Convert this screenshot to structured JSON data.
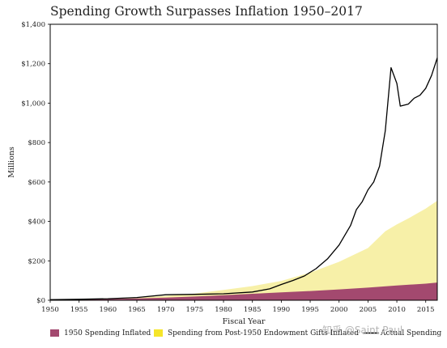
{
  "title": "Spending Growth Surpasses Inflation 1950–2017",
  "watermark": "知乎 @Saint Paul",
  "chart_data": {
    "type": "area",
    "title": "Spending Growth Surpasses Inflation 1950–2017",
    "xlabel": "Fiscal Year",
    "ylabel": "Millions",
    "xlim": [
      1950,
      2017
    ],
    "ylim": [
      0,
      1400
    ],
    "x_ticks": [
      1950,
      1955,
      1960,
      1965,
      1970,
      1975,
      1980,
      1985,
      1990,
      1995,
      2000,
      2005,
      2010,
      2015
    ],
    "y_ticks": [
      {
        "value": 0,
        "label": "$0"
      },
      {
        "value": 200,
        "label": "$200"
      },
      {
        "value": 400,
        "label": "$400"
      },
      {
        "value": 600,
        "label": "$600"
      },
      {
        "value": 800,
        "label": "$800"
      },
      {
        "value": 1000,
        "label": "$1,000"
      },
      {
        "value": 1200,
        "label": "$1,200"
      },
      {
        "value": 1400,
        "label": "$1,400"
      }
    ],
    "grid": false,
    "legend_position": "bottom",
    "series": [
      {
        "name": "1950 Spending Inflated",
        "kind": "area",
        "color": "#a3496f",
        "points": [
          [
            1950,
            3
          ],
          [
            1955,
            4
          ],
          [
            1960,
            6
          ],
          [
            1965,
            9
          ],
          [
            1970,
            13
          ],
          [
            1975,
            19
          ],
          [
            1980,
            26
          ],
          [
            1985,
            33
          ],
          [
            1990,
            40
          ],
          [
            1995,
            47
          ],
          [
            2000,
            55
          ],
          [
            2005,
            64
          ],
          [
            2010,
            75
          ],
          [
            2015,
            84
          ],
          [
            2017,
            90
          ]
        ]
      },
      {
        "name": "Spending from Post-1950 Endowment Gifts Inflated",
        "kind": "stacked-area-total",
        "color": "#f7f0a8",
        "points": [
          [
            1950,
            3
          ],
          [
            1955,
            6
          ],
          [
            1960,
            9
          ],
          [
            1965,
            14
          ],
          [
            1970,
            22
          ],
          [
            1975,
            34
          ],
          [
            1980,
            52
          ],
          [
            1985,
            72
          ],
          [
            1990,
            98
          ],
          [
            1995,
            140
          ],
          [
            2000,
            195
          ],
          [
            2005,
            265
          ],
          [
            2008,
            350
          ],
          [
            2010,
            385
          ],
          [
            2012,
            415
          ],
          [
            2015,
            465
          ],
          [
            2017,
            505
          ]
        ]
      },
      {
        "name": "Actual Spending",
        "kind": "line",
        "color": "#000000",
        "points": [
          [
            1950,
            3
          ],
          [
            1955,
            5
          ],
          [
            1960,
            8
          ],
          [
            1965,
            14
          ],
          [
            1970,
            28
          ],
          [
            1975,
            30
          ],
          [
            1980,
            33
          ],
          [
            1985,
            42
          ],
          [
            1988,
            58
          ],
          [
            1990,
            80
          ],
          [
            1992,
            100
          ],
          [
            1994,
            123
          ],
          [
            1996,
            160
          ],
          [
            1998,
            210
          ],
          [
            2000,
            280
          ],
          [
            2002,
            380
          ],
          [
            2003,
            460
          ],
          [
            2004,
            500
          ],
          [
            2005,
            560
          ],
          [
            2006,
            600
          ],
          [
            2007,
            680
          ],
          [
            2008,
            860
          ],
          [
            2009,
            1180
          ],
          [
            2010,
            1100
          ],
          [
            2010.6,
            985
          ],
          [
            2012,
            995
          ],
          [
            2013,
            1025
          ],
          [
            2014,
            1040
          ],
          [
            2015,
            1075
          ],
          [
            2016,
            1140
          ],
          [
            2017,
            1230
          ]
        ]
      }
    ]
  }
}
